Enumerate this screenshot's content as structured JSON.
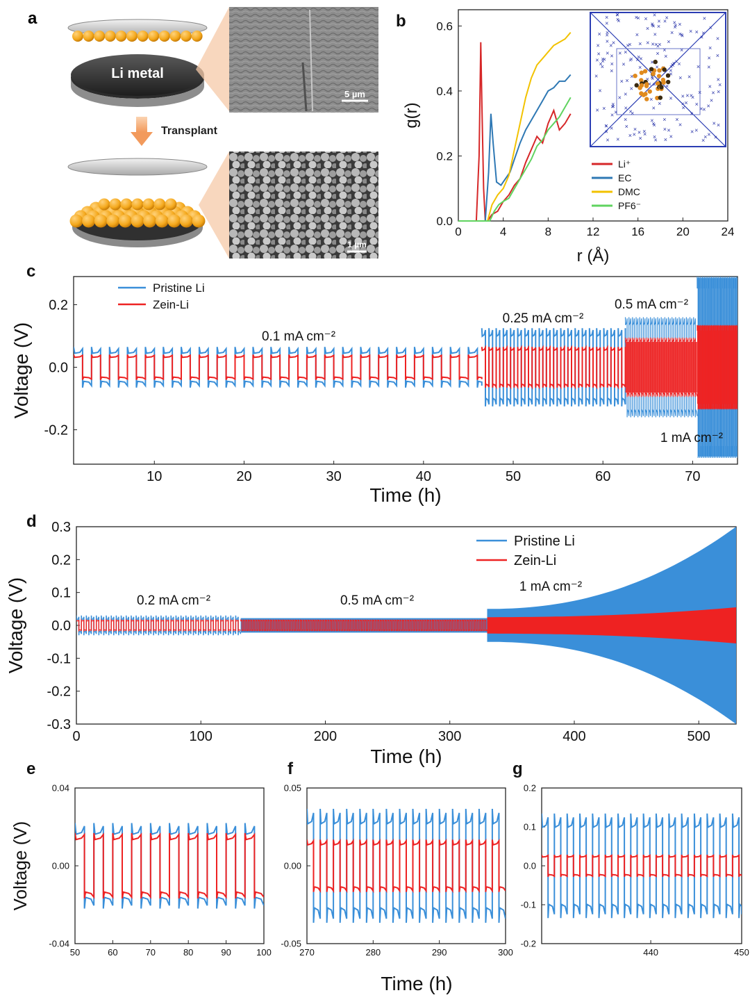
{
  "panels": {
    "a": {
      "label": "a",
      "disc_label": "Li metal",
      "arrow_label": "Transplant",
      "sem_top_scale": "5 µm",
      "sem_bottom_scale": "1 µm"
    }
  },
  "colors": {
    "li": "#d62728",
    "ec": "#2e78b4",
    "dmc": "#f2c200",
    "pf6": "#5fd35f",
    "pristine": "#3a8fd9",
    "zein": "#ee2222",
    "gold": "#f4a81c"
  },
  "chart_data": [
    {
      "id": "b",
      "panel_label": "b",
      "type": "line",
      "xlabel": "r (Å)",
      "ylabel": "g(r)",
      "xlim": [
        0,
        24
      ],
      "ylim": [
        0,
        0.65
      ],
      "xticks": [
        0,
        4,
        8,
        12,
        16,
        20,
        24
      ],
      "yticks": [
        0.0,
        0.2,
        0.4,
        0.6
      ],
      "xtick_labels": [
        "0",
        "4",
        "8",
        "12",
        "16",
        "20",
        "24"
      ],
      "ytick_labels": [
        "0.0",
        "0.2",
        "0.4",
        "0.6"
      ],
      "legend": [
        "Li⁺",
        "EC",
        "DMC",
        "PF6⁻"
      ],
      "series": [
        {
          "name": "Li⁺",
          "x": [
            0,
            1.6,
            1.85,
            2.0,
            2.1,
            2.25,
            2.4,
            2.6,
            3.0,
            3.5,
            4.0,
            4.5,
            5.0,
            5.5,
            6.0,
            6.5,
            7.0,
            7.5,
            8.0,
            8.5,
            9.0,
            9.5,
            10.0
          ],
          "y": [
            0,
            0,
            0.2,
            0.55,
            0.35,
            0.1,
            0.0,
            0.0,
            0.02,
            0.03,
            0.06,
            0.08,
            0.11,
            0.13,
            0.18,
            0.22,
            0.26,
            0.24,
            0.3,
            0.34,
            0.28,
            0.3,
            0.33
          ]
        },
        {
          "name": "EC",
          "x": [
            0,
            2.4,
            2.7,
            2.9,
            3.1,
            3.4,
            3.8,
            4.2,
            4.6,
            5.0,
            5.5,
            6.0,
            6.5,
            7.0,
            7.5,
            8.0,
            8.5,
            9.0,
            9.5,
            10.0
          ],
          "y": [
            0,
            0,
            0.15,
            0.33,
            0.24,
            0.12,
            0.11,
            0.13,
            0.15,
            0.19,
            0.24,
            0.28,
            0.31,
            0.34,
            0.37,
            0.4,
            0.41,
            0.43,
            0.43,
            0.45
          ]
        },
        {
          "name": "DMC",
          "x": [
            0,
            2.6,
            3.0,
            3.5,
            4.0,
            4.5,
            5.0,
            5.5,
            6.0,
            6.5,
            7.0,
            7.5,
            8.0,
            8.5,
            9.0,
            9.5,
            10.0
          ],
          "y": [
            0,
            0,
            0.05,
            0.08,
            0.1,
            0.14,
            0.22,
            0.3,
            0.38,
            0.44,
            0.48,
            0.5,
            0.52,
            0.54,
            0.55,
            0.56,
            0.58
          ]
        },
        {
          "name": "PF6⁻",
          "x": [
            0,
            2.8,
            3.2,
            3.6,
            4.0,
            4.5,
            5.0,
            5.5,
            6.0,
            6.5,
            7.0,
            7.5,
            8.0,
            8.5,
            9.0,
            9.5,
            10.0
          ],
          "y": [
            0,
            0,
            0.03,
            0.05,
            0.06,
            0.07,
            0.1,
            0.13,
            0.16,
            0.19,
            0.23,
            0.25,
            0.28,
            0.3,
            0.32,
            0.35,
            0.38
          ]
        }
      ]
    },
    {
      "id": "c",
      "panel_label": "c",
      "type": "line",
      "xlabel": "Time (h)",
      "ylabel": "Voltage (V)",
      "xlim": [
        1,
        75
      ],
      "ylim": [
        -0.31,
        0.29
      ],
      "xticks": [
        10,
        20,
        30,
        40,
        50,
        60,
        70
      ],
      "yticks": [
        -0.2,
        0.0,
        0.2
      ],
      "xtick_labels": [
        "10",
        "20",
        "30",
        "40",
        "50",
        "60",
        "70"
      ],
      "ytick_labels": [
        "-0.2",
        "0.0",
        "0.2"
      ],
      "legend": [
        "Pristine Li",
        "Zein-Li"
      ],
      "annotations": [
        "0.1 mA cm⁻²",
        "0.25 mA cm⁻²",
        "0.5 mA cm⁻²",
        "1 mA cm⁻²"
      ],
      "segments": [
        {
          "current": "0.1 mA cm⁻²",
          "x_start": 1,
          "x_end": 46.5,
          "period": 2,
          "pristine_amp": 0.05,
          "zein_amp": 0.035
        },
        {
          "current": "0.25 mA cm⁻²",
          "x_start": 46.5,
          "x_end": 62.5,
          "period": 0.8,
          "pristine_amp": 0.11,
          "zein_amp": 0.06
        },
        {
          "current": "0.5 mA cm⁻²",
          "x_start": 62.5,
          "x_end": 70.5,
          "period": 0.4,
          "pristine_amp": 0.15,
          "zein_amp": 0.09
        },
        {
          "current": "1 mA cm⁻²",
          "x_start": 70.5,
          "x_end": 75,
          "period": 0.2,
          "pristine_amp": 0.28,
          "zein_amp": 0.13
        }
      ]
    },
    {
      "id": "d",
      "panel_label": "d",
      "type": "line",
      "xlabel": "Time (h)",
      "ylabel": "Voltage (V)",
      "xlim": [
        0,
        530
      ],
      "ylim": [
        -0.3,
        0.3
      ],
      "xticks": [
        0,
        100,
        200,
        300,
        400,
        500
      ],
      "yticks": [
        -0.3,
        -0.2,
        -0.1,
        0.0,
        0.1,
        0.2,
        0.3
      ],
      "xtick_labels": [
        "0",
        "100",
        "200",
        "300",
        "400",
        "500"
      ],
      "ytick_labels": [
        "-0.3",
        "-0.2",
        "-0.1",
        "0.0",
        "0.1",
        "0.2",
        "0.3"
      ],
      "legend": [
        "Pristine Li",
        "Zein-Li"
      ],
      "annotations": [
        "0.2 mA cm⁻²",
        "0.5 mA cm⁻²",
        "1 mA cm⁻²"
      ],
      "segments": [
        {
          "current": "0.2 mA cm⁻²",
          "x_start": 0,
          "x_end": 132,
          "pristine_amp": 0.02,
          "zein_amp": 0.015
        },
        {
          "current": "0.5 mA cm⁻²",
          "x_start": 132,
          "x_end": 330,
          "pristine_amp": 0.022,
          "zein_amp": 0.015
        },
        {
          "current": "1 mA cm⁻²",
          "x_start": 330,
          "x_end": 530,
          "pristine_amp_start": 0.05,
          "pristine_amp_end": 0.3,
          "zein_amp_start": 0.025,
          "zein_amp_end": 0.055
        }
      ]
    },
    {
      "id": "e",
      "panel_label": "e",
      "type": "line",
      "xlabel": "",
      "ylabel": "Voltage (V)",
      "xlim": [
        50,
        100
      ],
      "ylim": [
        -0.04,
        0.04
      ],
      "xticks": [
        50,
        60,
        70,
        80,
        90,
        100
      ],
      "yticks": [
        -0.04,
        0.0,
        0.04
      ],
      "xtick_labels": [
        "50",
        "60",
        "70",
        "80",
        "90",
        "100"
      ],
      "ytick_labels": [
        "-0.04",
        "0.00",
        "0.04"
      ],
      "period": 5,
      "pristine_amp": 0.018,
      "zein_amp": 0.015
    },
    {
      "id": "f",
      "panel_label": "f",
      "type": "line",
      "xlabel": "",
      "ylabel": "",
      "xlim": [
        270,
        300
      ],
      "ylim": [
        -0.05,
        0.05
      ],
      "xticks": [
        270,
        280,
        290,
        300
      ],
      "yticks": [
        -0.05,
        0.0,
        0.05
      ],
      "xtick_labels": [
        "270",
        "280",
        "290",
        "300"
      ],
      "ytick_labels": [
        "-0.05",
        "0.00",
        "0.05"
      ],
      "period": 2,
      "pristine_amp": 0.03,
      "zein_amp": 0.015
    },
    {
      "id": "g",
      "panel_label": "g",
      "type": "line",
      "xlabel": "",
      "ylabel": "",
      "xlim": [
        428,
        450
      ],
      "ylim": [
        -0.2,
        0.2
      ],
      "xticks": [
        440,
        450
      ],
      "yticks": [
        -0.2,
        -0.1,
        0.0,
        0.1,
        0.2
      ],
      "xtick_labels": [
        "440",
        "450"
      ],
      "ytick_labels": [
        "-0.2",
        "-0.1",
        "0.0",
        "0.1",
        "0.2"
      ],
      "period": 1.4,
      "pristine_amp": 0.11,
      "zein_amp": 0.025
    }
  ],
  "shared_efg_xlabel": "Time (h)"
}
